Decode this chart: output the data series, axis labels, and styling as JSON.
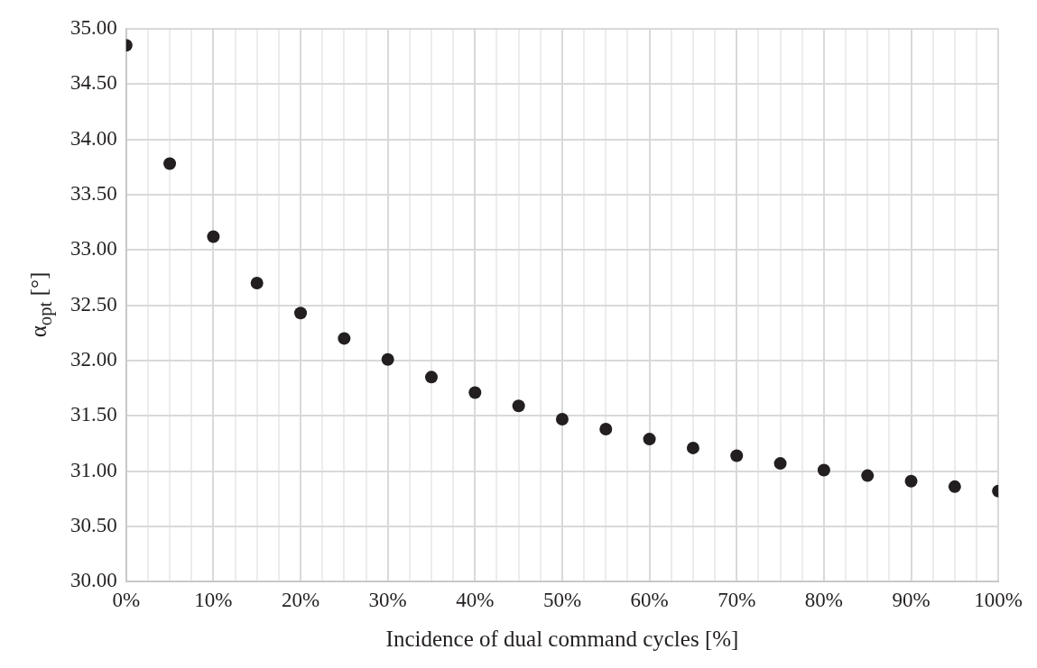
{
  "chart_data": {
    "type": "scatter",
    "xlabel": "Incidence of dual command cycles [%]",
    "ylabel": "α$_{opt}$ [°]",
    "x": [
      0,
      5,
      10,
      15,
      20,
      25,
      30,
      35,
      40,
      45,
      50,
      55,
      60,
      65,
      70,
      75,
      80,
      85,
      90,
      95,
      100
    ],
    "series": [
      {
        "color": "#231f20",
        "values": [
          34.85,
          33.78,
          33.12,
          32.7,
          32.43,
          32.2,
          32.01,
          31.85,
          31.71,
          31.59,
          31.47,
          31.38,
          31.29,
          31.21,
          31.14,
          31.07,
          31.01,
          30.96,
          30.91,
          30.86,
          30.82
        ]
      }
    ],
    "xlim": [
      0,
      100
    ],
    "xticks": [
      {
        "value": 0,
        "label": "0%"
      },
      {
        "value": 2.5,
        "label": null
      },
      {
        "value": 5,
        "label": null
      },
      {
        "value": 7.5,
        "label": null
      },
      {
        "value": 10,
        "label": "10%"
      },
      {
        "value": 12.5,
        "label": null
      },
      {
        "value": 15,
        "label": null
      },
      {
        "value": 17.5,
        "label": null
      },
      {
        "value": 20,
        "label": "20%"
      },
      {
        "value": 22.5,
        "label": null
      },
      {
        "value": 25,
        "label": null
      },
      {
        "value": 27.5,
        "label": null
      },
      {
        "value": 30,
        "label": "30%"
      },
      {
        "value": 32.5,
        "label": null
      },
      {
        "value": 35,
        "label": null
      },
      {
        "value": 37.5,
        "label": null
      },
      {
        "value": 40,
        "label": "40%"
      },
      {
        "value": 42.5,
        "label": null
      },
      {
        "value": 45,
        "label": null
      },
      {
        "value": 47.5,
        "label": null
      },
      {
        "value": 50,
        "label": "50%"
      },
      {
        "value": 52.5,
        "label": null
      },
      {
        "value": 55,
        "label": null
      },
      {
        "value": 57.5,
        "label": null
      },
      {
        "value": 60,
        "label": "60%"
      },
      {
        "value": 62.5,
        "label": null
      },
      {
        "value": 65,
        "label": null
      },
      {
        "value": 67.5,
        "label": null
      },
      {
        "value": 70,
        "label": "70%"
      },
      {
        "value": 72.5,
        "label": null
      },
      {
        "value": 75,
        "label": null
      },
      {
        "value": 77.5,
        "label": null
      },
      {
        "value": 80,
        "label": "80%"
      },
      {
        "value": 82.5,
        "label": null
      },
      {
        "value": 85,
        "label": null
      },
      {
        "value": 87.5,
        "label": null
      },
      {
        "value": 90,
        "label": "90%"
      },
      {
        "value": 92.5,
        "label": null
      },
      {
        "value": 95,
        "label": null
      },
      {
        "value": 97.5,
        "label": null
      },
      {
        "value": 100,
        "label": "100%"
      }
    ],
    "ylim": [
      30,
      35
    ],
    "yticks": [
      {
        "value": 30,
        "label": "30.00"
      },
      {
        "value": 30.5,
        "label": "30.50"
      },
      {
        "value": 31,
        "label": "31.00"
      },
      {
        "value": 31.5,
        "label": "31.50"
      },
      {
        "value": 32,
        "label": "32.00"
      },
      {
        "value": 32.5,
        "label": "32.50"
      },
      {
        "value": 33,
        "label": "33.00"
      },
      {
        "value": 33.5,
        "label": "33.50"
      },
      {
        "value": 34,
        "label": "34.00"
      },
      {
        "value": 34.5,
        "label": "34.50"
      },
      {
        "value": 35,
        "label": "35.00"
      }
    ],
    "grid": true,
    "legend": false,
    "marker": "circle"
  }
}
